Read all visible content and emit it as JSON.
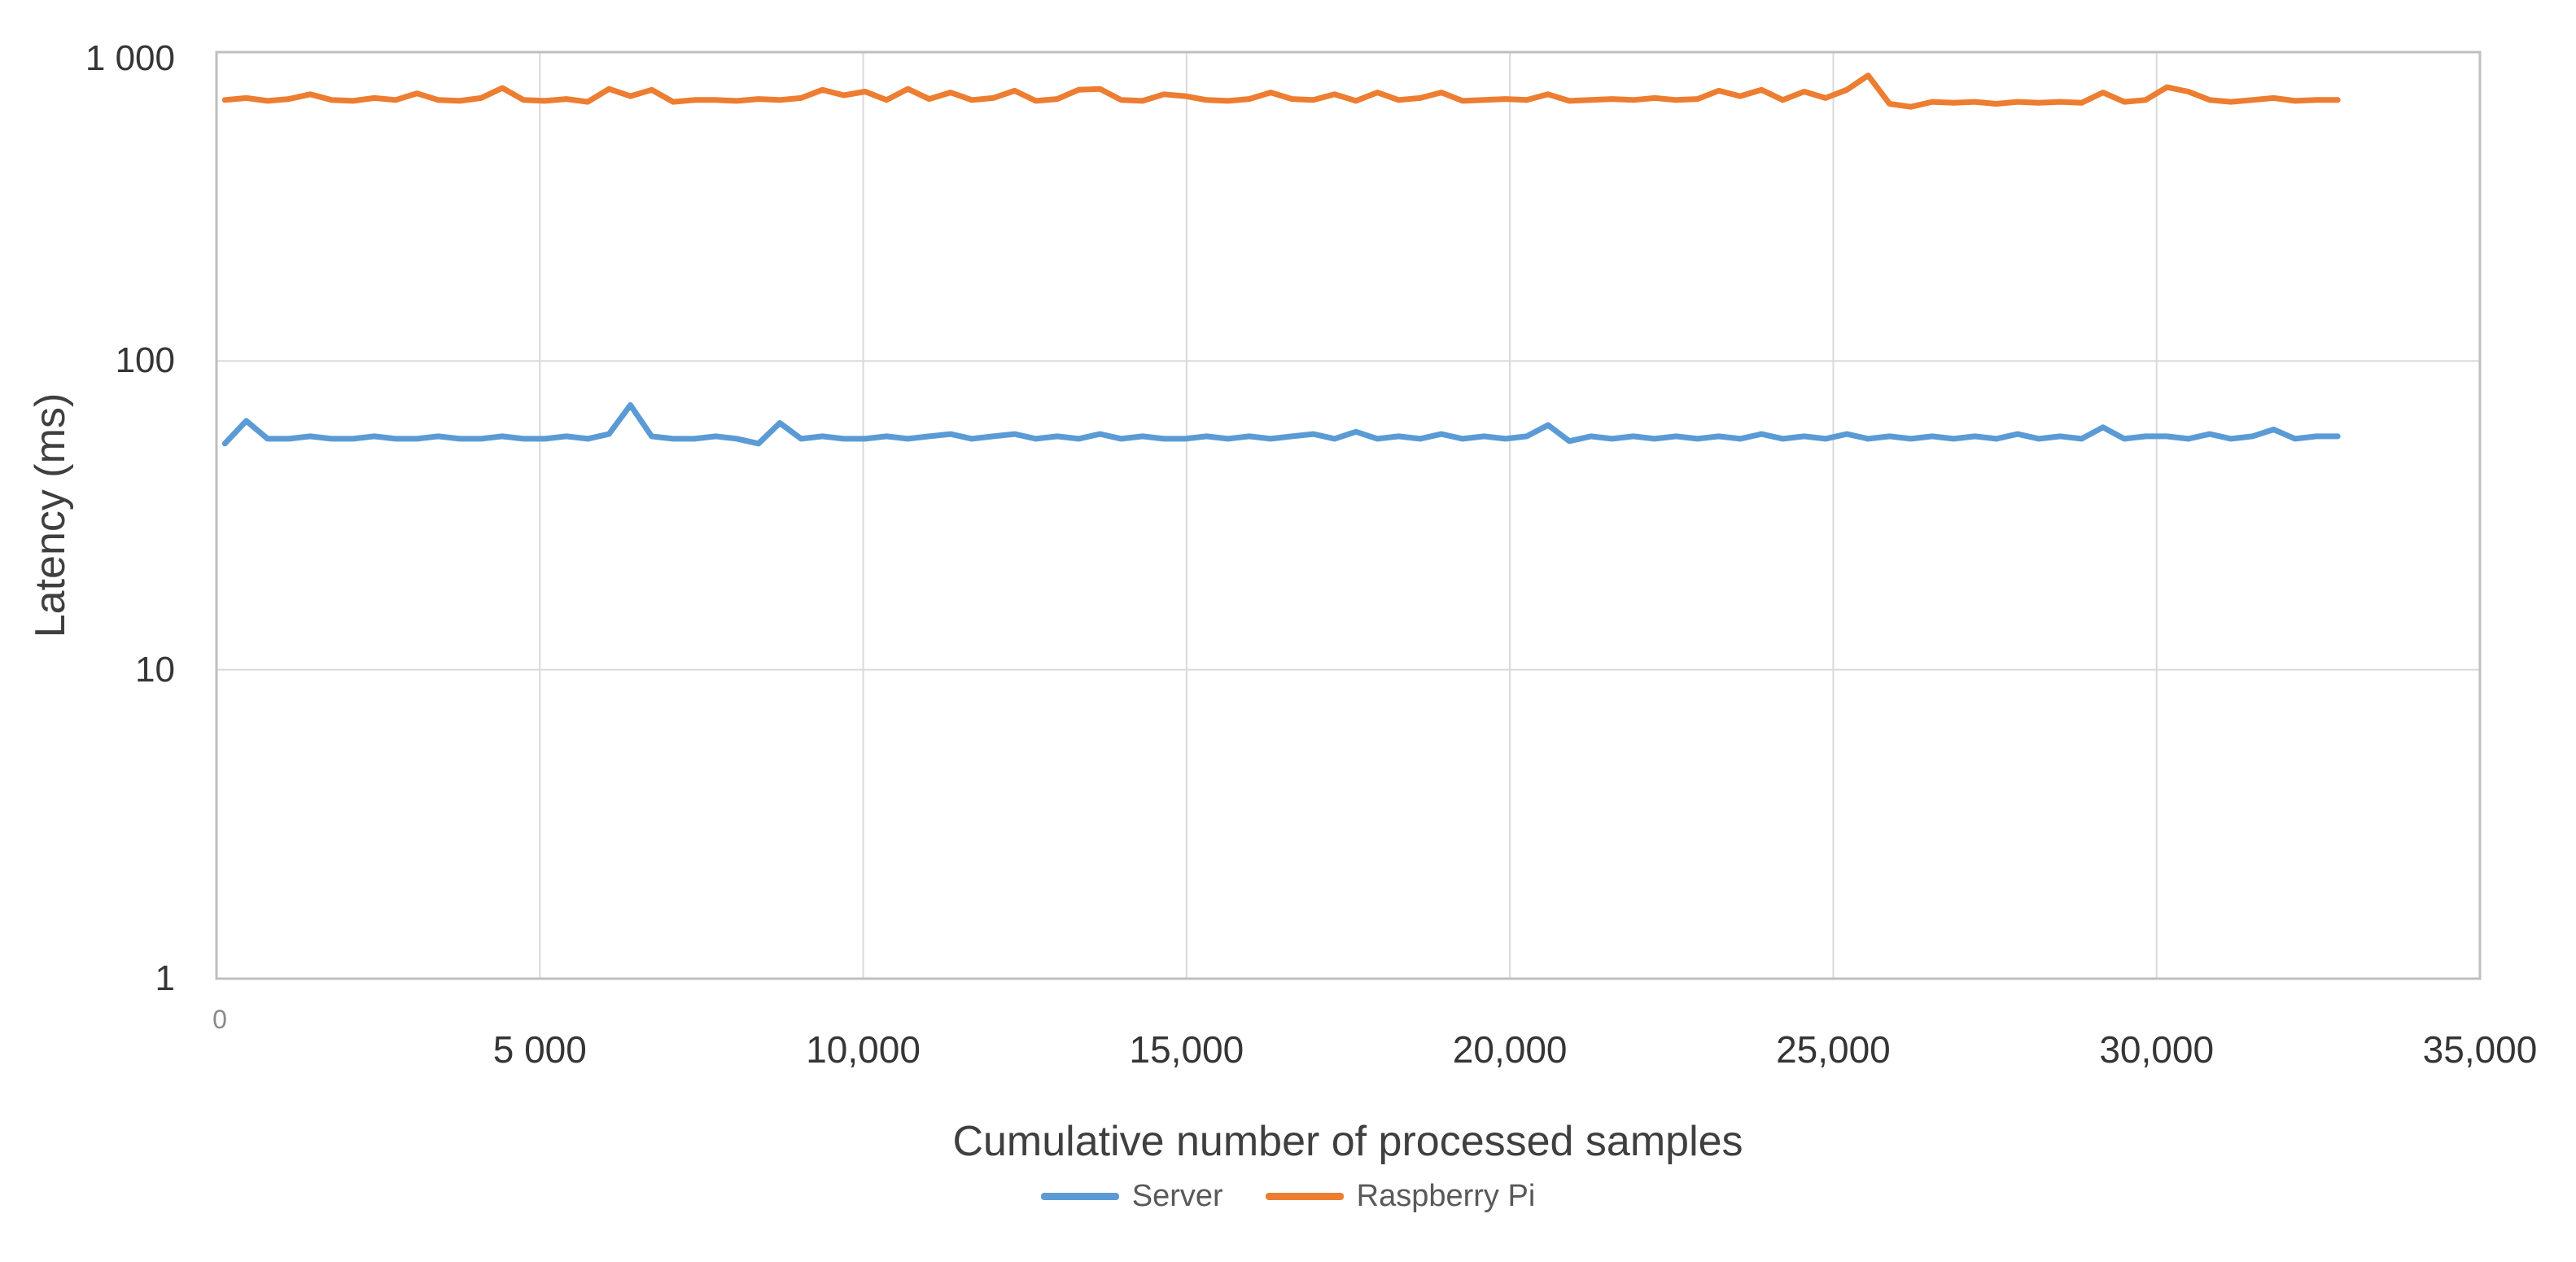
{
  "figure": {
    "background": "#FFFFFF",
    "gridline_color": "#D9D9D9",
    "border_color": "#BFBFBF",
    "y_axis": {
      "title": "Latency (ms)",
      "scale": "log",
      "min": 1,
      "max": 1000,
      "ticks": [
        "1 000",
        "100",
        "10",
        "1"
      ],
      "tick_values": [
        1000,
        100,
        10,
        1
      ]
    },
    "x_axis": {
      "title": "Cumulative number of processed samples",
      "min": 0,
      "max": 35000,
      "ticks": [
        "0",
        "5 000",
        "10,000",
        "15,000",
        "20,000",
        "25,000",
        "30,000",
        "35,000"
      ],
      "tick_values": [
        0,
        5000,
        10000,
        15000,
        20000,
        25000,
        30000,
        35000
      ]
    },
    "legend": [
      {
        "label": "Server",
        "color": "#5B9BD5"
      },
      {
        "label": "Raspberry Pi",
        "color": "#ED7D31"
      }
    ]
  },
  "chart_data": {
    "type": "line",
    "title": "",
    "xlabel": "Cumulative number of processed samples",
    "ylabel": "Latency (ms)",
    "x_range": [
      0,
      35000
    ],
    "y_range": [
      1,
      1000
    ],
    "y_scale": "log",
    "grid": true,
    "legend_position": "bottom",
    "x": [
      130,
      460,
      790,
      1120,
      1450,
      1780,
      2110,
      2440,
      2770,
      3100,
      3430,
      3760,
      4090,
      4420,
      4750,
      5080,
      5410,
      5740,
      6070,
      6400,
      6730,
      7060,
      7390,
      7720,
      8050,
      8380,
      8710,
      9040,
      9370,
      9700,
      10030,
      10360,
      10690,
      11020,
      11350,
      11680,
      12010,
      12340,
      12670,
      13000,
      13330,
      13660,
      13990,
      14320,
      14650,
      14980,
      15310,
      15640,
      15970,
      16300,
      16630,
      16960,
      17290,
      17620,
      17950,
      18280,
      18610,
      18940,
      19270,
      19600,
      19930,
      20260,
      20590,
      20920,
      21250,
      21580,
      21910,
      22240,
      22570,
      22900,
      23230,
      23560,
      23890,
      24220,
      24550,
      24880,
      25210,
      25540,
      25870,
      26200,
      26530,
      26860,
      27190,
      27520,
      27850,
      28180,
      28510,
      28840,
      29170,
      29500,
      29830,
      30160,
      30490,
      30820,
      31150,
      31480,
      31810,
      32140,
      32470,
      32800
    ],
    "series": [
      {
        "name": "Server",
        "color": "#5B9BD5",
        "values": [
          54,
          64,
          56,
          56,
          57,
          56,
          56,
          57,
          56,
          56,
          57,
          56,
          56,
          57,
          56,
          56,
          57,
          56,
          58,
          72,
          57,
          56,
          56,
          57,
          56,
          54,
          63,
          56,
          57,
          56,
          56,
          57,
          56,
          57,
          58,
          56,
          57,
          58,
          56,
          57,
          56,
          58,
          56,
          57,
          56,
          56,
          57,
          56,
          57,
          56,
          57,
          58,
          56,
          59,
          56,
          57,
          56,
          58,
          56,
          57,
          56,
          57,
          62,
          55,
          57,
          56,
          57,
          56,
          57,
          56,
          57,
          56,
          58,
          56,
          57,
          56,
          58,
          56,
          57,
          56,
          57,
          56,
          57,
          56,
          58,
          56,
          57,
          56,
          61,
          56,
          57,
          57,
          56,
          58,
          56,
          57,
          60,
          56,
          57,
          57
        ]
      },
      {
        "name": "Raspberry Pi",
        "color": "#ED7D31",
        "values": [
          700,
          710,
          695,
          705,
          730,
          700,
          695,
          710,
          700,
          735,
          700,
          695,
          710,
          765,
          700,
          695,
          705,
          690,
          760,
          720,
          755,
          690,
          700,
          700,
          695,
          705,
          700,
          710,
          755,
          725,
          745,
          700,
          760,
          705,
          740,
          700,
          710,
          750,
          695,
          705,
          755,
          760,
          700,
          695,
          730,
          720,
          700,
          695,
          705,
          740,
          705,
          700,
          730,
          695,
          740,
          700,
          710,
          740,
          695,
          700,
          705,
          700,
          730,
          695,
          700,
          705,
          700,
          710,
          700,
          705,
          750,
          720,
          755,
          700,
          745,
          710,
          755,
          840,
          680,
          665,
          690,
          685,
          690,
          680,
          690,
          685,
          690,
          685,
          740,
          690,
          700,
          770,
          745,
          700,
          690,
          700,
          710,
          695,
          700,
          700
        ]
      }
    ]
  }
}
